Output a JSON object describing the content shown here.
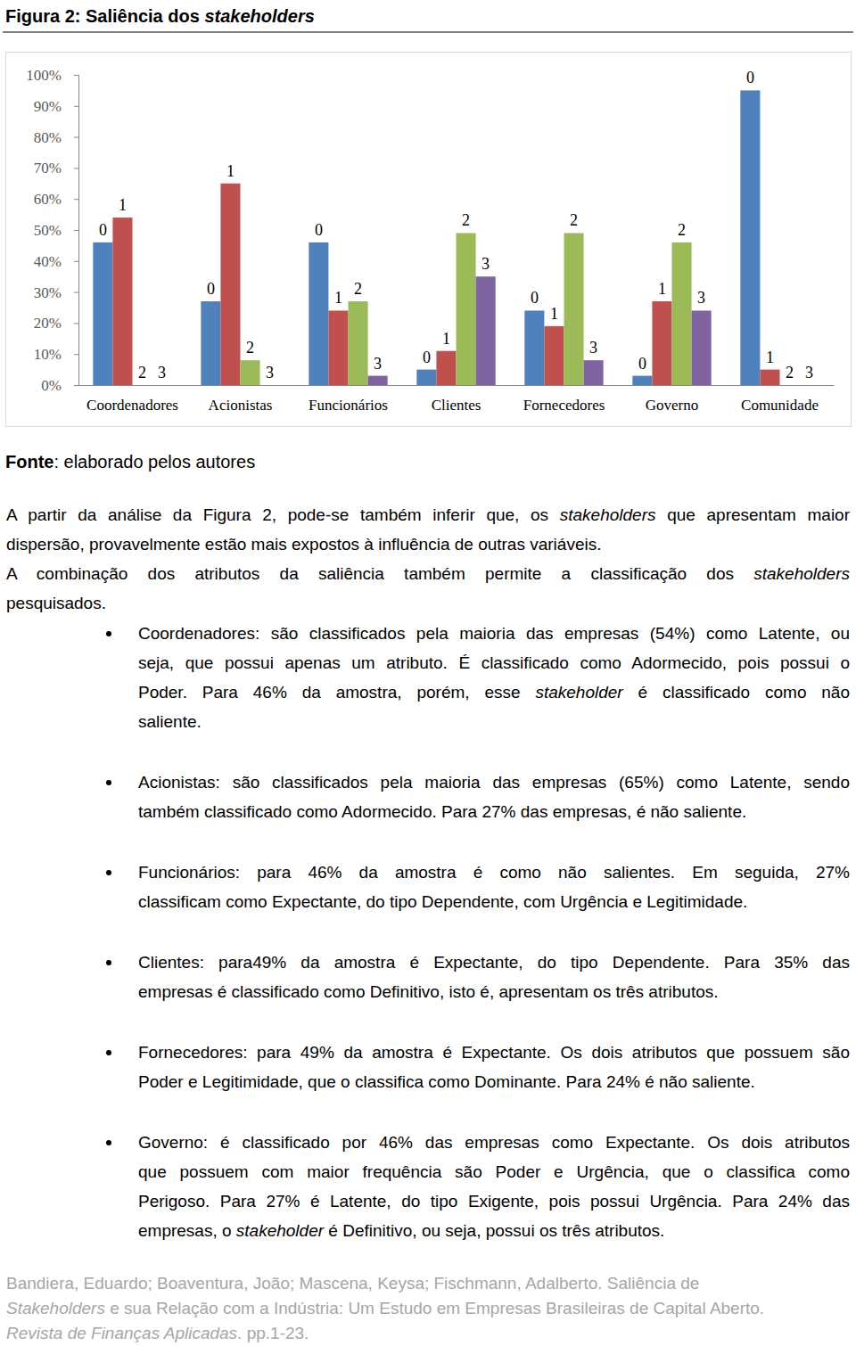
{
  "document": {
    "figure_title": [
      {
        "text": "Figura 2: Saliência dos ",
        "bold": true
      },
      {
        "text": "stakeholders",
        "bold": true,
        "italic": true
      }
    ],
    "source": [
      {
        "text": "Fonte",
        "bold": true
      },
      {
        "text": ": elaborado pelos autores"
      }
    ],
    "paragraphs": [
      [
        [
          {
            "text": "A partir da análise da Figura 2, pode-se também inferir que, os "
          },
          {
            "text": "stakeholders",
            "italic": true
          },
          {
            "text": " que apresentam maior"
          }
        ],
        [
          {
            "text": "dispersão, provavelmente estão mais expostos à influência de outras variáveis."
          }
        ]
      ],
      [
        [
          {
            "text": "A combinação dos atributos da saliência também permite a classificação dos "
          },
          {
            "text": "stakeholders",
            "italic": true
          }
        ],
        [
          {
            "text": "pesquisados."
          }
        ]
      ]
    ],
    "bullets": [
      [
        [
          {
            "text": "Coordenadores: são classificados pela maioria das empresas (54%) como Latente, ou"
          }
        ],
        [
          {
            "text": "seja, que possui apenas um atributo. É classificado como Adormecido, pois possui o"
          }
        ],
        [
          {
            "text": "Poder. Para 46% da amostra, porém, esse "
          },
          {
            "text": "stakeholder",
            "italic": true
          },
          {
            "text": " é classificado como não"
          }
        ],
        [
          {
            "text": "saliente."
          }
        ]
      ],
      [
        [
          {
            "text": "Acionistas: são classificados pela maioria das empresas (65%) como Latente, sendo"
          }
        ],
        [
          {
            "text": "também classificado como Adormecido. Para 27% das empresas, é não saliente."
          }
        ]
      ],
      [
        [
          {
            "text": "Funcionários: para 46% da amostra é como não salientes. Em seguida, 27%"
          }
        ],
        [
          {
            "text": "classificam como Expectante, do tipo Dependente, com Urgência e Legitimidade."
          }
        ]
      ],
      [
        [
          {
            "text": "Clientes: para49% da amostra é Expectante, do tipo Dependente. Para 35% das"
          }
        ],
        [
          {
            "text": "empresas é classificado como Definitivo, isto é, apresentam os três atributos."
          }
        ]
      ],
      [
        [
          {
            "text": "Fornecedores: para 49% da amostra é Expectante. Os dois atributos que possuem são"
          }
        ],
        [
          {
            "text": "Poder e Legitimidade, que o classifica como Dominante. Para 24% é não saliente."
          }
        ]
      ],
      [
        [
          {
            "text": "Governo: é classificado por 46% das empresas como Expectante. Os dois atributos"
          }
        ],
        [
          {
            "text": "que possuem com maior frequência são Poder e Urgência, que o classifica como"
          }
        ],
        [
          {
            "text": "Perigoso. Para 27% é Latente, do tipo Exigente, pois possui Urgência. Para 24% das"
          }
        ],
        [
          {
            "text": "empresas, o "
          },
          {
            "text": "stakeholder",
            "italic": true
          },
          {
            "text": " é Definitivo, ou seja, possui os três atributos."
          }
        ]
      ]
    ],
    "footer": [
      [
        {
          "text": "Bandiera, Eduardo; Boaventura, João; Mascena, Keysa; Fischmann, Adalberto. Saliência de"
        }
      ],
      [
        {
          "text": "Stakeholders",
          "italic": true
        },
        {
          "text": " e sua Relação com a Indústria: Um Estudo em Empresas Brasileiras de Capital Aberto."
        }
      ],
      [
        {
          "text": "Revista de Finanças Aplicadas",
          "italic": true
        },
        {
          "text": ". pp.1-23."
        }
      ]
    ]
  },
  "chart_data": {
    "type": "bar",
    "categories": [
      "Coordenadores",
      "Acionistas",
      "Funcionários",
      "Clientes",
      "Fornecedores",
      "Governo",
      "Comunidade"
    ],
    "series": [
      {
        "name": "0",
        "color": "#4f81bd",
        "values": [
          46,
          27,
          46,
          5,
          24,
          3,
          95
        ]
      },
      {
        "name": "1",
        "color": "#c0504d",
        "values": [
          54,
          65,
          24,
          11,
          19,
          27,
          5
        ]
      },
      {
        "name": "2",
        "color": "#9bbb59",
        "values": [
          0,
          8,
          27,
          49,
          49,
          46,
          0
        ]
      },
      {
        "name": "3",
        "color": "#8064a2",
        "values": [
          0,
          0,
          3,
          35,
          8,
          24,
          0
        ]
      }
    ],
    "ylim": [
      0,
      100
    ],
    "yticks": [
      {
        "value": 0,
        "label": "0%"
      },
      {
        "value": 10,
        "label": "10%"
      },
      {
        "value": 20,
        "label": "20%"
      },
      {
        "value": 30,
        "label": "30%"
      },
      {
        "value": 40,
        "label": "40%"
      },
      {
        "value": 50,
        "label": "50%"
      },
      {
        "value": 60,
        "label": "60%"
      },
      {
        "value": 70,
        "label": "70%"
      },
      {
        "value": 80,
        "label": "80%"
      },
      {
        "value": 90,
        "label": "90%"
      },
      {
        "value": 100,
        "label": "100%"
      }
    ],
    "grid": false
  }
}
